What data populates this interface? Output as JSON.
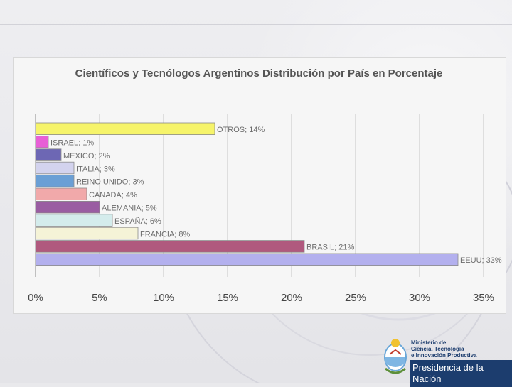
{
  "chart_data": {
    "type": "bar",
    "orientation": "horizontal",
    "title": "Científicos y Tecnólogos Argentinos Distribución por País en Porcentaje",
    "xlim": [
      0,
      35
    ],
    "xticks": [
      0,
      5,
      10,
      15,
      20,
      25,
      30,
      35
    ],
    "xtick_labels": [
      "0%",
      "5%",
      "10%",
      "15%",
      "20%",
      "25%",
      "30%",
      "35%"
    ],
    "grid": true,
    "categories": [
      "OTROS",
      "ISRAEL",
      "MEXICO",
      "ITALIA",
      "REINO UNIDO",
      "CANADA",
      "ALEMANIA",
      "ESPAÑA",
      "FRANCIA",
      "BRASIL",
      "EEUU"
    ],
    "values": [
      14,
      1,
      2,
      3,
      3,
      4,
      5,
      6,
      8,
      21,
      33
    ],
    "data_labels": [
      "OTROS; 14%",
      "ISRAEL; 1%",
      "MEXICO; 2%",
      "ITALIA; 3%",
      "REINO UNIDO; 3%",
      "CANADA; 4%",
      "ALEMANIA; 5%",
      "ESPAÑA; 6%",
      "FRANCIA; 8%",
      "BRASIL; 21%",
      "EEUU; 33%"
    ],
    "colors": [
      "#f6f46a",
      "#e85fd6",
      "#6d67b4",
      "#d3d3ee",
      "#6a9fd5",
      "#f1a9aa",
      "#9a5da2",
      "#d4ecec",
      "#f5f3d7",
      "#b0597e",
      "#b3b0ee"
    ]
  },
  "footer": {
    "ministerio": "Ministerio de\nCiencia, Tecnología\ne Innovación Productiva",
    "presidencia": "Presidencia de la Nación"
  }
}
